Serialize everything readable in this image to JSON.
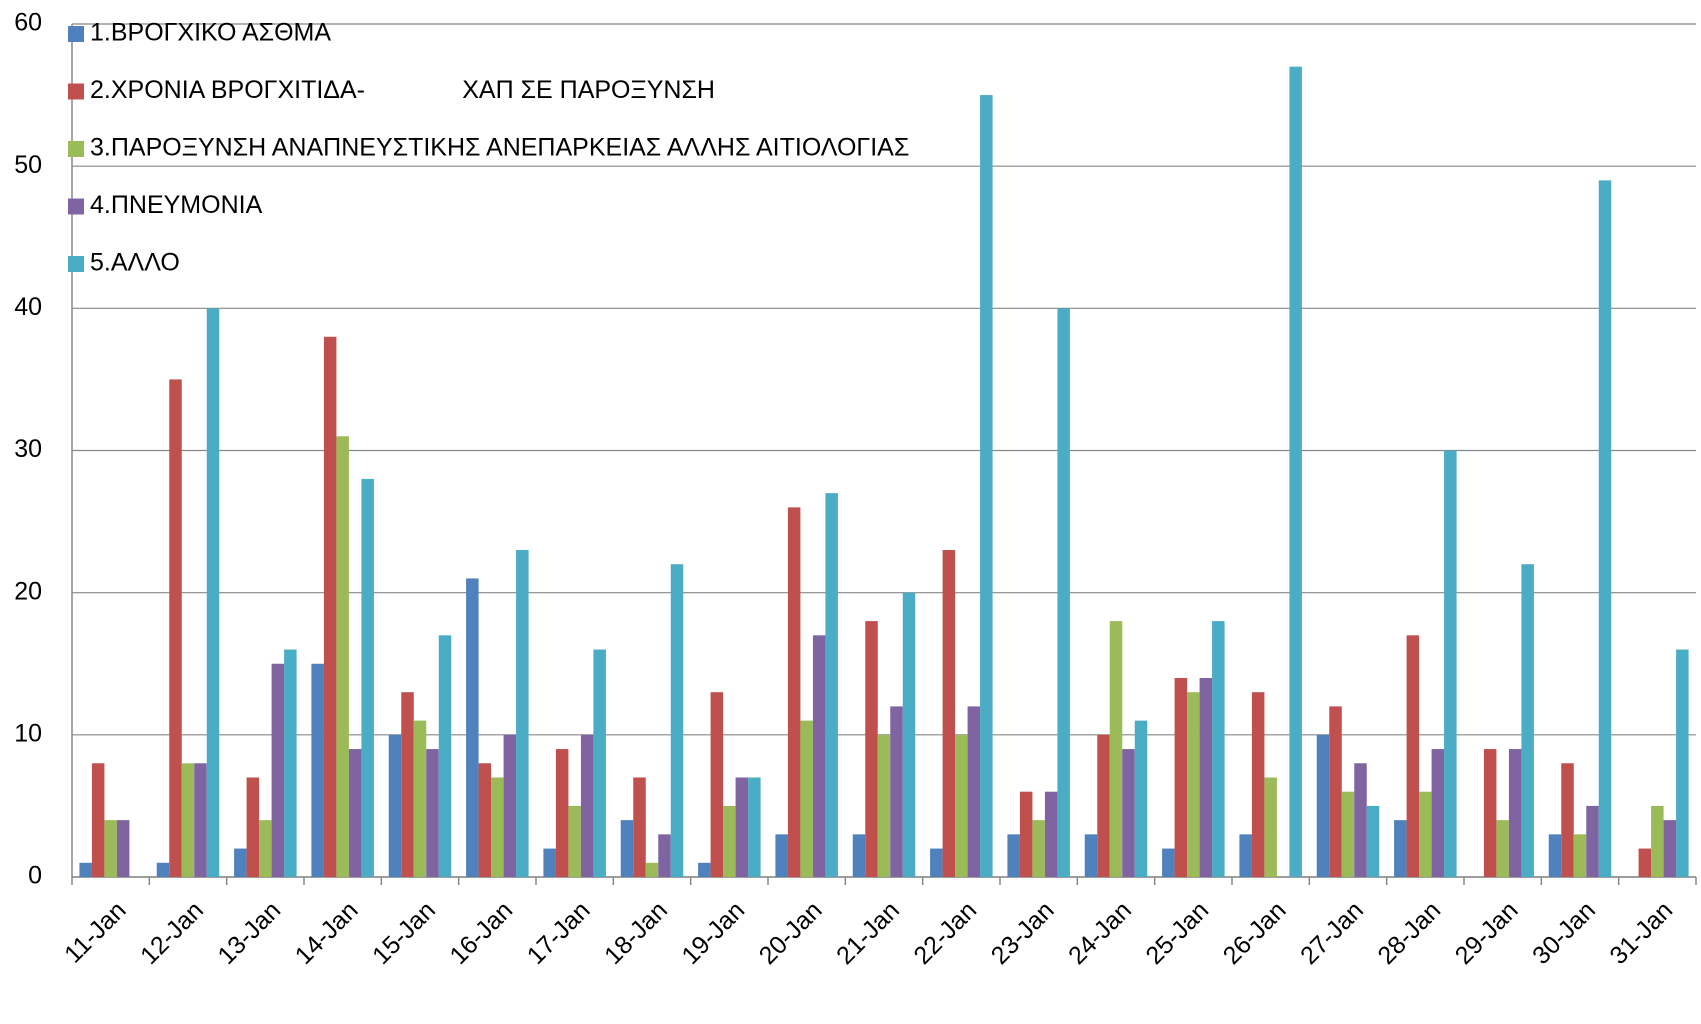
{
  "chart_data": {
    "type": "bar",
    "categories": [
      "11-Jan",
      "12-Jan",
      "13-Jan",
      "14-Jan",
      "15-Jan",
      "16-Jan",
      "17-Jan",
      "18-Jan",
      "19-Jan",
      "20-Jan",
      "21-Jan",
      "22-Jan",
      "23-Jan",
      "24-Jan",
      "25-Jan",
      "26-Jan",
      "27-Jan",
      "28-Jan",
      "29-Jan",
      "30-Jan",
      "31-Jan"
    ],
    "series": [
      {
        "name": "1.ΒΡΟΓΧΙΚΟ ΑΣΘΜΑ",
        "color": "#4f81bd",
        "values": [
          1,
          1,
          2,
          15,
          10,
          21,
          2,
          4,
          1,
          3,
          3,
          2,
          3,
          3,
          2,
          3,
          10,
          4,
          0,
          3,
          0
        ]
      },
      {
        "name": "2.ΧΡΟΝΙΑ ΒΡΟΓΧΙΤΙΔΑ-              ΧΑΠ ΣΕ ΠΑΡΟΞΥΝΣΗ",
        "color": "#c0504d",
        "values": [
          8,
          35,
          7,
          38,
          13,
          8,
          9,
          7,
          13,
          26,
          18,
          23,
          6,
          10,
          14,
          13,
          12,
          17,
          9,
          8,
          2
        ]
      },
      {
        "name": "3.ΠΑΡΟΞΥΝΣΗ ΑΝΑΠΝΕΥΣΤΙΚΗΣ ΑΝΕΠΑΡΚΕΙΑΣ ΑΛΛΗΣ ΑΙΤΙΟΛΟΓΙΑΣ",
        "color": "#9bbb59",
        "values": [
          4,
          8,
          4,
          31,
          11,
          7,
          5,
          1,
          5,
          11,
          10,
          10,
          4,
          18,
          13,
          7,
          6,
          6,
          4,
          3,
          5
        ]
      },
      {
        "name": "4.ΠΝΕΥΜΟΝΙΑ",
        "color": "#8064a2",
        "values": [
          4,
          8,
          15,
          9,
          9,
          10,
          10,
          3,
          7,
          17,
          12,
          12,
          6,
          9,
          14,
          0,
          8,
          9,
          9,
          5,
          4
        ]
      },
      {
        "name": "5.ΑΛΛΟ",
        "color": "#4bacc6",
        "values": [
          0,
          40,
          16,
          28,
          17,
          23,
          16,
          22,
          7,
          27,
          20,
          55,
          40,
          11,
          18,
          57,
          5,
          30,
          22,
          49,
          16
        ]
      }
    ],
    "ylim": [
      0,
      60
    ],
    "yticks": [
      0,
      10,
      20,
      30,
      40,
      50,
      60
    ],
    "grid": true,
    "legend": "top-left"
  }
}
